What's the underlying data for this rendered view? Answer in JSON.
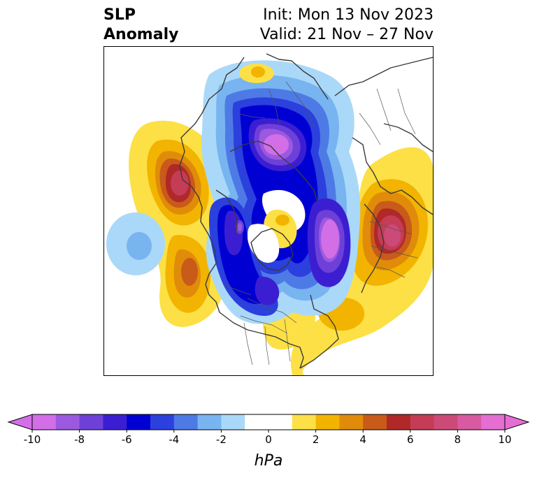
{
  "title": {
    "left_line1": "SLP",
    "left_line2": "Anomaly",
    "right_line1": "Init: Mon 13 Nov 2023",
    "right_line2": "Valid: 21 Nov – 27 Nov"
  },
  "colorbar": {
    "unit_label": "hPa",
    "min": -10,
    "max": 10,
    "step": 1,
    "tick_labels": [
      "-10",
      "-8",
      "-6",
      "-4",
      "-2",
      "0",
      "2",
      "4",
      "6",
      "8",
      "10"
    ],
    "tick_values": [
      -10,
      -8,
      -6,
      -4,
      -2,
      0,
      2,
      4,
      6,
      8,
      10
    ],
    "colors": [
      "#d26ee6",
      "#9b59e0",
      "#6e40d8",
      "#3c1ed2",
      "#0000d2",
      "#2b40dc",
      "#4e7ae6",
      "#78b4f0",
      "#aad8f8",
      "#ffffff",
      "#ffffff",
      "#fce046",
      "#f2b400",
      "#e08c0a",
      "#c85a1a",
      "#b02828",
      "#c43c55",
      "#cc4a78",
      "#d85aa0",
      "#e46ed2"
    ]
  }
}
